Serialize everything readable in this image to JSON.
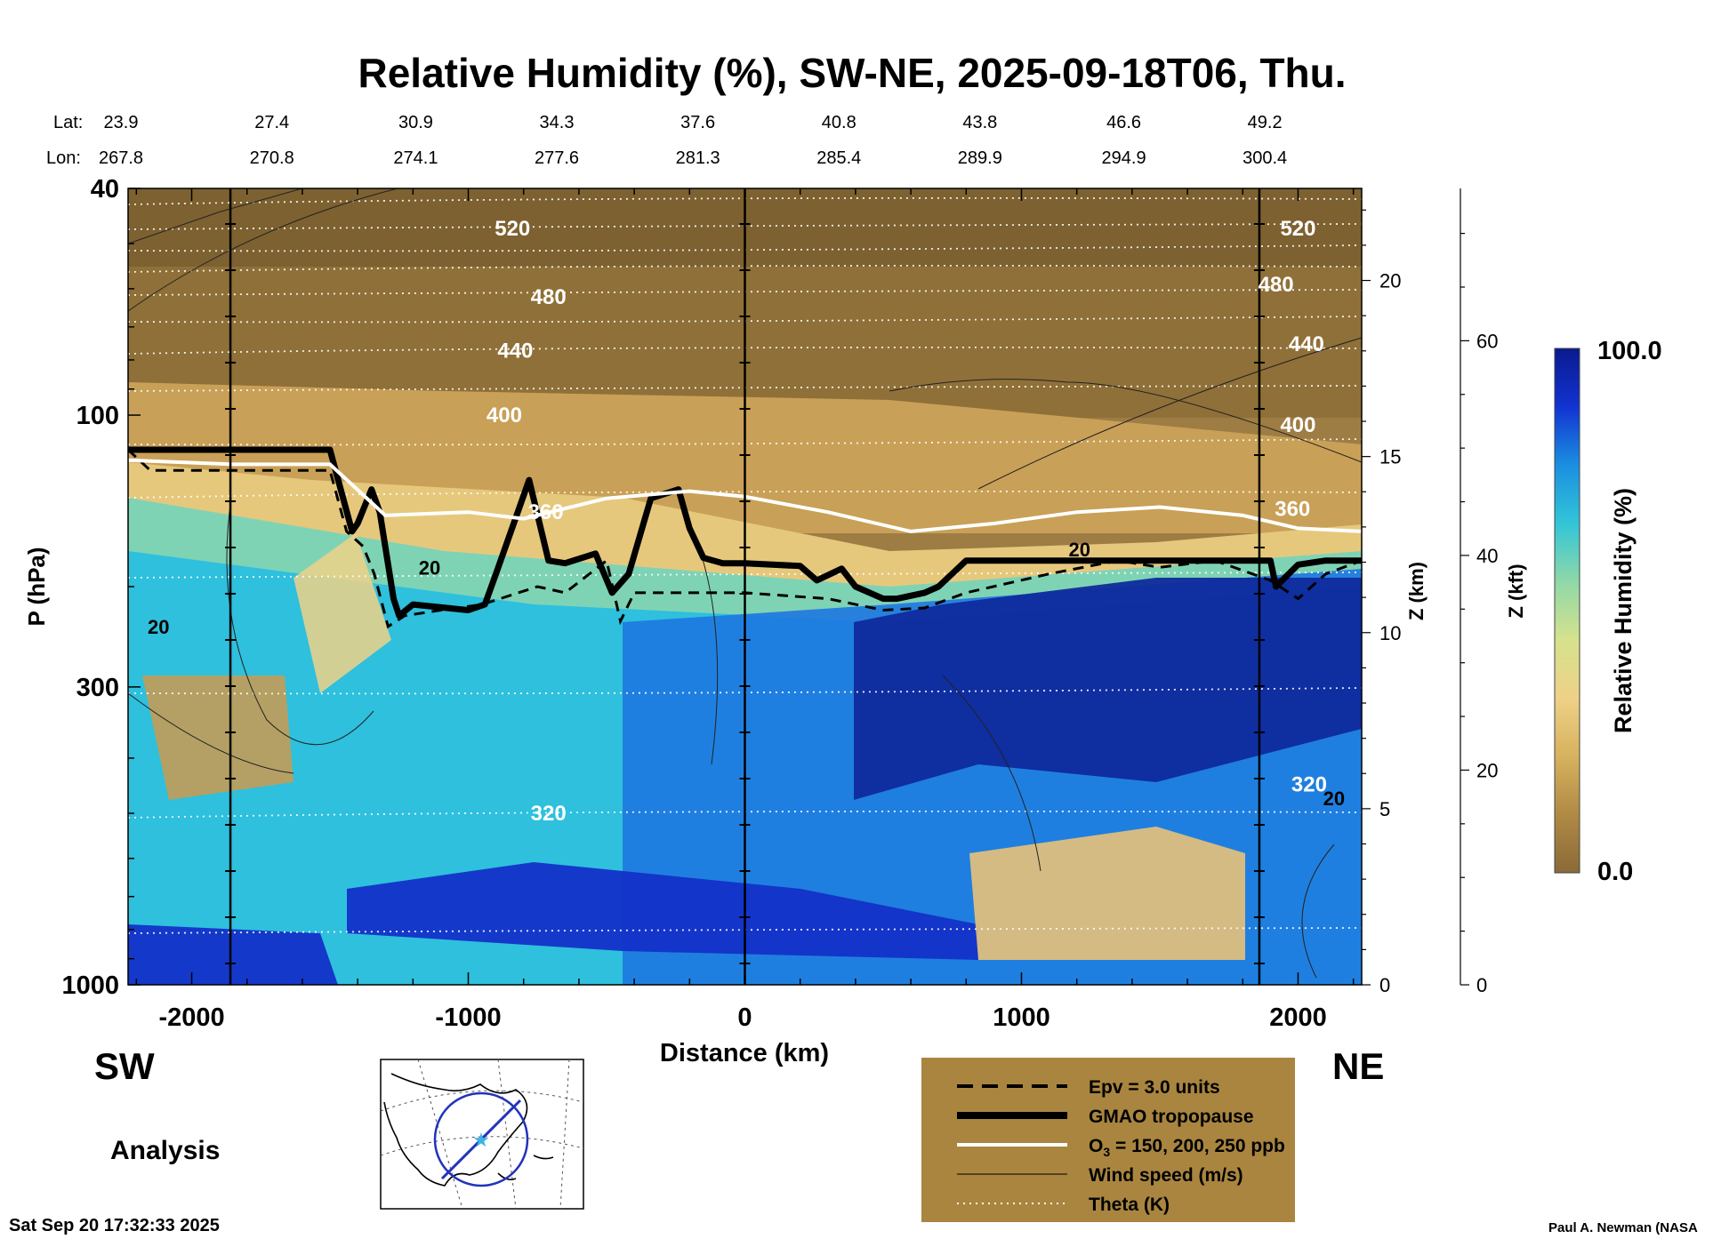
{
  "chart_data": {
    "type": "heatmap",
    "title": "Relative Humidity (%), SW-NE, 2025-09-18T06, Thu.",
    "xlabel": "Distance (km)",
    "ylabel": "P (hPa)",
    "y2label": "Z (km)",
    "y3label": "Z (kft)",
    "xlim": [
      -2230,
      2230
    ],
    "ylim": [
      1000,
      40
    ],
    "y_scale": "log",
    "x_ticks": [
      -2000,
      -1000,
      0,
      1000,
      2000
    ],
    "y_ticks": [
      {
        "value": 1000,
        "label": "1000"
      },
      {
        "value": 300,
        "label": "300"
      },
      {
        "value": 100,
        "label": "100"
      },
      {
        "value": 40,
        "label": "40"
      }
    ],
    "z_km_ticks": [
      0,
      5,
      10,
      15,
      20
    ],
    "z_kft_ticks": [
      0,
      20,
      40,
      60
    ],
    "vertical_lines_km": [
      -1860,
      0,
      1860
    ],
    "location_rows": {
      "lat_label": "Lat:",
      "lon_label": "Lon:",
      "lat": [
        "23.9",
        "27.4",
        "30.9",
        "34.3",
        "37.6",
        "40.8",
        "43.8",
        "46.6",
        "49.2"
      ],
      "lon": [
        "267.8",
        "270.8",
        "274.1",
        "277.6",
        "281.3",
        "285.4",
        "289.9",
        "294.9",
        "300.4"
      ],
      "x": [
        -2230,
        -1710,
        -1190,
        -680,
        -170,
        340,
        850,
        1370,
        1880
      ]
    },
    "colorbar": {
      "label": "Relative Humidity (%)",
      "min_label": "0.0",
      "max_label": "100.0",
      "stops": [
        "#8a6a37",
        "#b08a45",
        "#d7b25e",
        "#eed188",
        "#d6e28d",
        "#8fd8a8",
        "#32c5d8",
        "#1b8fe0",
        "#1233d1",
        "#0a1a8e"
      ]
    },
    "theta_labels": [
      {
        "value": "520",
        "x": -840,
        "p": 47
      },
      {
        "value": "480",
        "x": -710,
        "p": 62
      },
      {
        "value": "440",
        "x": -830,
        "p": 77
      },
      {
        "value": "400",
        "x": -870,
        "p": 100
      },
      {
        "value": "360",
        "x": -720,
        "p": 148
      },
      {
        "value": "320",
        "x": -710,
        "p": 500
      },
      {
        "value": "520",
        "x": 2000,
        "p": 47
      },
      {
        "value": "480",
        "x": 1920,
        "p": 59
      },
      {
        "value": "440",
        "x": 2030,
        "p": 75
      },
      {
        "value": "400",
        "x": 2000,
        "p": 104
      },
      {
        "value": "360",
        "x": 1980,
        "p": 146
      },
      {
        "value": "320",
        "x": 2040,
        "p": 445
      }
    ],
    "wind_labels": [
      {
        "value": "20",
        "x": -2120,
        "p": 235
      },
      {
        "value": "20",
        "x": -1140,
        "p": 185
      },
      {
        "value": "20",
        "x": 1210,
        "p": 172
      },
      {
        "value": "20",
        "x": 2130,
        "p": 470
      }
    ],
    "series": [
      {
        "name": "GMAO tropopause",
        "style": "thick-black",
        "x": [
          -2230,
          -1500,
          -1420,
          -1400,
          -1350,
          -1320,
          -1270,
          -1250,
          -1200,
          -1000,
          -940,
          -900,
          -780,
          -710,
          -650,
          -540,
          -480,
          -420,
          -340,
          -240,
          -200,
          -150,
          -80,
          0,
          200,
          260,
          350,
          400,
          500,
          550,
          650,
          700,
          800,
          1300,
          1900,
          1920,
          2000,
          2100,
          2230
        ],
        "p": [
          115,
          115,
          160,
          155,
          135,
          148,
          210,
          225,
          215,
          220,
          215,
          190,
          130,
          180,
          182,
          175,
          205,
          190,
          140,
          135,
          158,
          178,
          182,
          182,
          184,
          195,
          186,
          200,
          210,
          210,
          205,
          200,
          180,
          180,
          180,
          200,
          183,
          180,
          180
        ]
      },
      {
        "name": "Epv = 3.0 units",
        "style": "dashed-black",
        "x": [
          -2230,
          -2150,
          -1850,
          -1500,
          -1440,
          -1380,
          -1340,
          -1290,
          -1230,
          -1100,
          -950,
          -750,
          -650,
          -500,
          -450,
          -400,
          -300,
          -150,
          0,
          300,
          500,
          650,
          800,
          1100,
          1350,
          1500,
          1700,
          1900,
          2000,
          2100,
          2230
        ],
        "p": [
          115,
          125,
          125,
          125,
          160,
          170,
          190,
          235,
          225,
          220,
          215,
          200,
          205,
          180,
          230,
          205,
          205,
          205,
          205,
          210,
          220,
          218,
          205,
          190,
          180,
          185,
          180,
          195,
          210,
          190,
          180
        ]
      },
      {
        "name": "O3 = 150, 200, 250 ppb",
        "style": "white",
        "x": [
          -2230,
          -1850,
          -1500,
          -1300,
          -1000,
          -800,
          -500,
          -200,
          0,
          300,
          600,
          900,
          1200,
          1500,
          1800,
          2000,
          2230
        ],
        "p": [
          120,
          122,
          122,
          150,
          148,
          152,
          140,
          136,
          139,
          148,
          160,
          155,
          148,
          145,
          150,
          158,
          160
        ]
      },
      {
        "name": "Wind speed (m/s)",
        "style": "thin-black",
        "x": [
          -2230,
          -1900,
          -1600,
          -1300,
          -1000,
          -700,
          -400,
          -100,
          200,
          500,
          800,
          1100,
          1400,
          1700,
          2000,
          2230
        ],
        "p": [
          50,
          44,
          40,
          40,
          40,
          40,
          40,
          40,
          40,
          40,
          40,
          40,
          40,
          40,
          40,
          40
        ]
      },
      {
        "name": "Theta (K)",
        "style": "dotted-white",
        "x": [],
        "p": []
      }
    ],
    "legend": {
      "position": "bottom-center",
      "entries": [
        "Epv = 3.0 units",
        "GMAO tropopause",
        "O3 = 150, 200, 250 ppb",
        "Wind speed (m/s)",
        "Theta (K)"
      ]
    },
    "annotations": {
      "sw": "SW",
      "ne": "NE",
      "analysis": "Analysis",
      "timestamp": "Sat Sep 20 17:32:33 2025",
      "credit": "Paul A. Newman (NASA"
    }
  }
}
